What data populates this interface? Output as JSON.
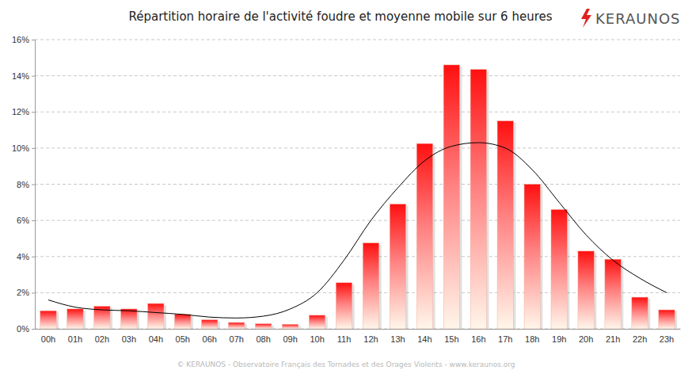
{
  "chart_data": {
    "type": "bar",
    "title": "Répartition horaire de l'activité foudre et moyenne mobile sur 6 heures",
    "annotations": [
      "KERAUNOS",
      "© KERAUNOS - Observatoire Français des Tornades et des Orages Violents - www.keraunos.org"
    ],
    "categories": [
      "00h",
      "01h",
      "02h",
      "03h",
      "04h",
      "05h",
      "06h",
      "07h",
      "08h",
      "09h",
      "10h",
      "11h",
      "12h",
      "13h",
      "14h",
      "15h",
      "16h",
      "17h",
      "18h",
      "19h",
      "20h",
      "21h",
      "22h",
      "23h"
    ],
    "series": [
      {
        "type": "bar",
        "color": "#ff0000",
        "values": [
          1.0,
          1.1,
          1.25,
          1.1,
          1.4,
          0.8,
          0.5,
          0.35,
          0.28,
          0.25,
          0.75,
          2.55,
          4.75,
          6.9,
          10.25,
          14.6,
          14.35,
          11.5,
          8.0,
          6.6,
          4.3,
          3.85,
          1.75,
          1.05
        ]
      },
      {
        "type": "line",
        "color": "#000000",
        "values": [
          1.6,
          1.2,
          1.05,
          1.0,
          0.9,
          0.8,
          0.65,
          0.6,
          0.7,
          1.1,
          2.0,
          3.8,
          6.0,
          7.8,
          9.3,
          10.1,
          10.3,
          10.0,
          8.8,
          7.0,
          5.2,
          3.8,
          2.8,
          2.0
        ]
      }
    ],
    "ylim": [
      0,
      16
    ],
    "yticks": [
      {
        "value": 0,
        "label": "0%"
      },
      {
        "value": 2,
        "label": "2%"
      },
      {
        "value": 4,
        "label": "4%"
      },
      {
        "value": 6,
        "label": "6%"
      },
      {
        "value": 8,
        "label": "8%"
      },
      {
        "value": 10,
        "label": "10%"
      },
      {
        "value": 12,
        "label": "12%"
      },
      {
        "value": 14,
        "label": "14%"
      },
      {
        "value": 16,
        "label": "16%"
      }
    ],
    "grid": true
  }
}
